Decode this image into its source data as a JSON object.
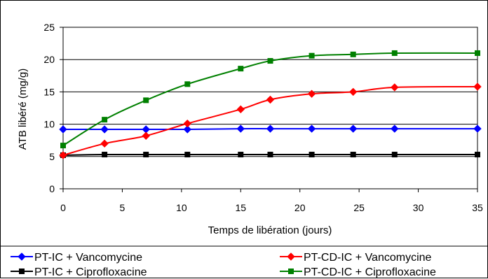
{
  "chart_data": {
    "type": "line",
    "xlabel": "Temps de libération (jours)",
    "ylabel": "ATB libéré (mg/g)",
    "xlim": [
      0,
      35
    ],
    "ylim": [
      0,
      25
    ],
    "x_ticks": [
      "0",
      "5",
      "10",
      "15",
      "20",
      "25",
      "30",
      "35"
    ],
    "y_ticks": [
      "0",
      "5",
      "10",
      "15",
      "20",
      "25"
    ],
    "grid": "horizontal",
    "legend_position": "bottom",
    "series": [
      {
        "name": "PT-IC + Vancomycine",
        "color": "#0000ff",
        "marker": "diamond",
        "x": [
          0,
          3.5,
          7,
          10.5,
          15,
          17.5,
          21,
          24.5,
          28,
          35
        ],
        "y": [
          9.2,
          9.2,
          9.2,
          9.2,
          9.3,
          9.3,
          9.3,
          9.3,
          9.3,
          9.3
        ]
      },
      {
        "name": "PT-IC + Ciprofloxacine",
        "color": "#000000",
        "marker": "square",
        "x": [
          0,
          3.5,
          7,
          10.5,
          15,
          17.5,
          21,
          24.5,
          28,
          35
        ],
        "y": [
          5.2,
          5.3,
          5.3,
          5.3,
          5.3,
          5.3,
          5.3,
          5.3,
          5.3,
          5.3
        ]
      },
      {
        "name": "PT-CD-IC + Vancomycine",
        "color": "#ff0000",
        "marker": "diamond",
        "x": [
          0,
          3.5,
          7,
          10.5,
          15,
          17.5,
          21,
          24.5,
          28,
          35
        ],
        "y": [
          5.2,
          7.0,
          8.2,
          10.1,
          12.3,
          13.8,
          14.7,
          15.0,
          15.7,
          15.8
        ]
      },
      {
        "name": "PT-CD-IC + Ciprofloxacine",
        "color": "#008000",
        "marker": "square",
        "x": [
          0,
          3.5,
          7,
          10.5,
          15,
          17.5,
          21,
          24.5,
          28,
          35
        ],
        "y": [
          6.7,
          10.7,
          13.7,
          16.2,
          18.6,
          19.8,
          20.6,
          20.8,
          21.0,
          21.0
        ]
      }
    ]
  }
}
